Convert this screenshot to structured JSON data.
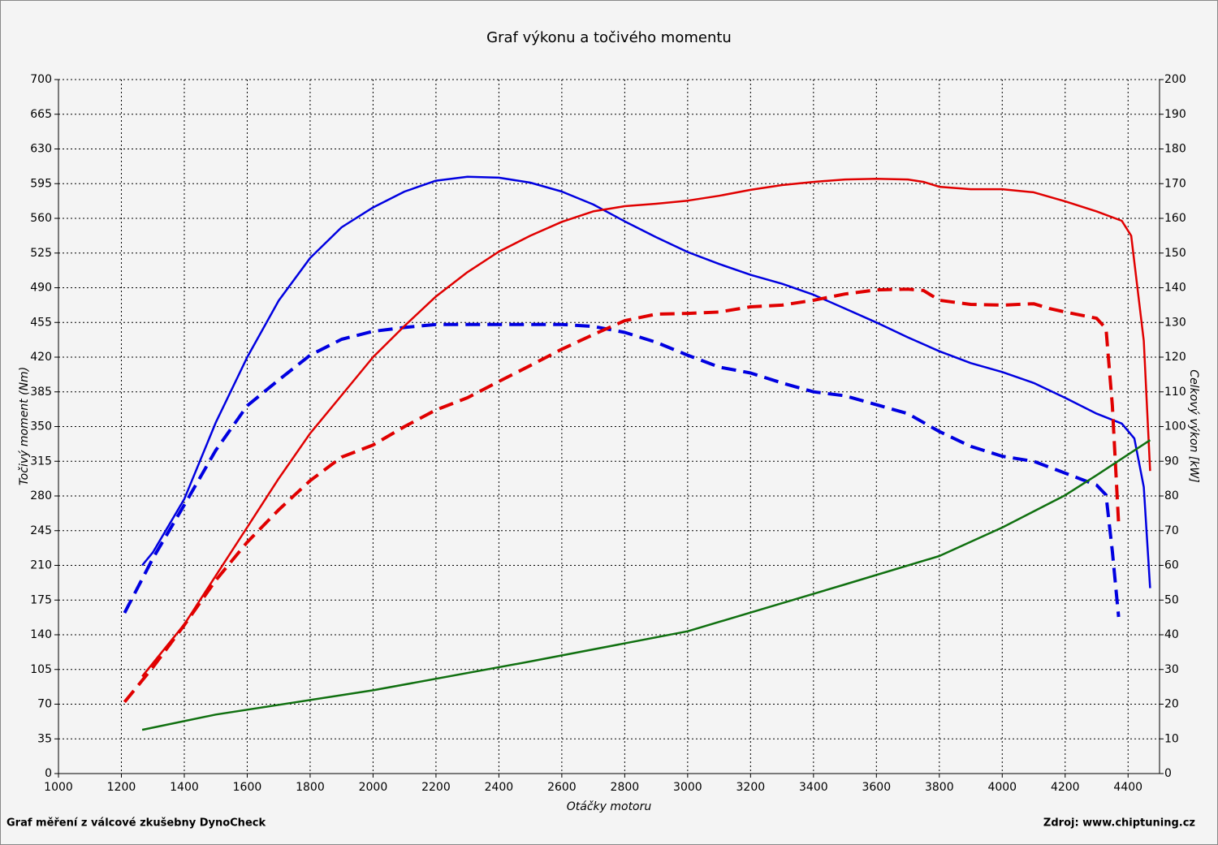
{
  "chart_data": {
    "type": "line",
    "title": "Graf výkonu a točivého momentu",
    "x_label": "Otáčky motoru",
    "y_label": "Točivý moment (Nm)",
    "y2_label": "Celkový výkon [kW]",
    "footer_left": "Graf měření z válcové zkušebny DynoCheck",
    "footer_right": "Zdroj: www.chiptuning.cz",
    "xlim": [
      1000,
      4500
    ],
    "xticks": [
      1000,
      1200,
      1400,
      1600,
      1800,
      2000,
      2200,
      2400,
      2600,
      2800,
      3000,
      3200,
      3400,
      3600,
      3800,
      4000,
      4200,
      4400
    ],
    "ylim": [
      0,
      700
    ],
    "yticks": [
      0,
      35,
      70,
      105,
      140,
      175,
      210,
      245,
      280,
      315,
      350,
      385,
      420,
      455,
      490,
      525,
      560,
      595,
      630,
      665,
      700
    ],
    "y2lim": [
      0,
      200
    ],
    "y2ticks": [
      0,
      10,
      20,
      30,
      40,
      50,
      60,
      70,
      80,
      90,
      100,
      110,
      120,
      130,
      140,
      150,
      160,
      170,
      180,
      190,
      200
    ],
    "grid": true,
    "series": [
      {
        "color": "#0000e0",
        "dashed": false,
        "axis": "y",
        "x": [
          1266,
          1300,
          1400,
          1500,
          1600,
          1700,
          1800,
          1900,
          2000,
          2100,
          2200,
          2300,
          2400,
          2500,
          2600,
          2700,
          2800,
          2900,
          3000,
          3100,
          3200,
          3300,
          3400,
          3500,
          3600,
          3700,
          3800,
          3900,
          4000,
          4100,
          4200,
          4300,
          4380,
          4420,
          4450,
          4470
        ],
        "values": [
          210,
          223,
          277,
          354,
          420,
          477,
          520,
          551,
          571,
          587,
          598,
          602,
          601,
          596,
          587,
          574,
          557,
          541,
          526,
          514,
          503,
          494,
          483,
          469,
          455,
          440,
          426,
          414,
          405,
          394,
          379,
          363,
          353,
          338,
          289,
          187
        ]
      },
      {
        "color": "#0000e0",
        "dashed": true,
        "axis": "y",
        "x": [
          1210,
          1300,
          1400,
          1500,
          1600,
          1700,
          1800,
          1900,
          2000,
          2100,
          2200,
          2400,
          2600,
          2700,
          2800,
          2900,
          3000,
          3100,
          3200,
          3300,
          3400,
          3500,
          3600,
          3700,
          3800,
          3900,
          4000,
          4100,
          4200,
          4300,
          4330,
          4350,
          4370
        ],
        "values": [
          162,
          217,
          271,
          326,
          371,
          397,
          422,
          438,
          446,
          450,
          453,
          453,
          453,
          451,
          445,
          435,
          422,
          410,
          404,
          394,
          385,
          381,
          372,
          363,
          345,
          330,
          320,
          315,
          303,
          291,
          281,
          224,
          158
        ]
      },
      {
        "color": "#e00000",
        "dashed": false,
        "axis": "y2",
        "x": [
          1266,
          1400,
          1500,
          1600,
          1700,
          1800,
          1900,
          2000,
          2100,
          2200,
          2300,
          2400,
          2500,
          2600,
          2700,
          2800,
          2900,
          3000,
          3100,
          3200,
          3300,
          3400,
          3500,
          3600,
          3700,
          3750,
          3800,
          3900,
          4000,
          4100,
          4200,
          4300,
          4380,
          4410,
          4450,
          4470
        ],
        "values": [
          28,
          43,
          57,
          71,
          85,
          98,
          109,
          120,
          129,
          137.5,
          144.5,
          150.4,
          155,
          159,
          162,
          163.5,
          164.2,
          165.1,
          166.5,
          168.2,
          169.6,
          170.5,
          171.2,
          171.4,
          171.2,
          170.5,
          169.1,
          168.4,
          168.4,
          167.5,
          164.9,
          162,
          159.3,
          155,
          124.7,
          87.2
        ]
      },
      {
        "color": "#e00000",
        "dashed": true,
        "axis": "y2",
        "x": [
          1210,
          1300,
          1400,
          1500,
          1600,
          1700,
          1800,
          1900,
          2000,
          2100,
          2200,
          2300,
          2400,
          2500,
          2600,
          2700,
          2800,
          2900,
          3000,
          3100,
          3200,
          3300,
          3400,
          3500,
          3600,
          3700,
          3750,
          3800,
          3900,
          4000,
          4100,
          4150,
          4200,
          4300,
          4330,
          4350,
          4370
        ],
        "values": [
          20.6,
          30.6,
          42.8,
          55.7,
          66.7,
          76,
          84.4,
          91.2,
          94.7,
          100,
          104.8,
          108.3,
          113,
          117.6,
          122.3,
          126.5,
          130.5,
          132.4,
          132.6,
          133,
          134.5,
          135,
          136.4,
          138.2,
          139.4,
          139.6,
          139.2,
          136.4,
          135.2,
          135,
          135.4,
          134,
          133,
          131.2,
          128.2,
          106,
          72
        ]
      },
      {
        "color": "#107010",
        "dashed": false,
        "axis": "y2",
        "x": [
          1266,
          1500,
          2000,
          2500,
          3000,
          3500,
          3800,
          4000,
          4200,
          4300,
          4470
        ],
        "values": [
          12.6,
          17,
          24,
          32.3,
          41,
          54.5,
          62.7,
          70.9,
          80.2,
          86,
          96.1
        ]
      }
    ]
  }
}
